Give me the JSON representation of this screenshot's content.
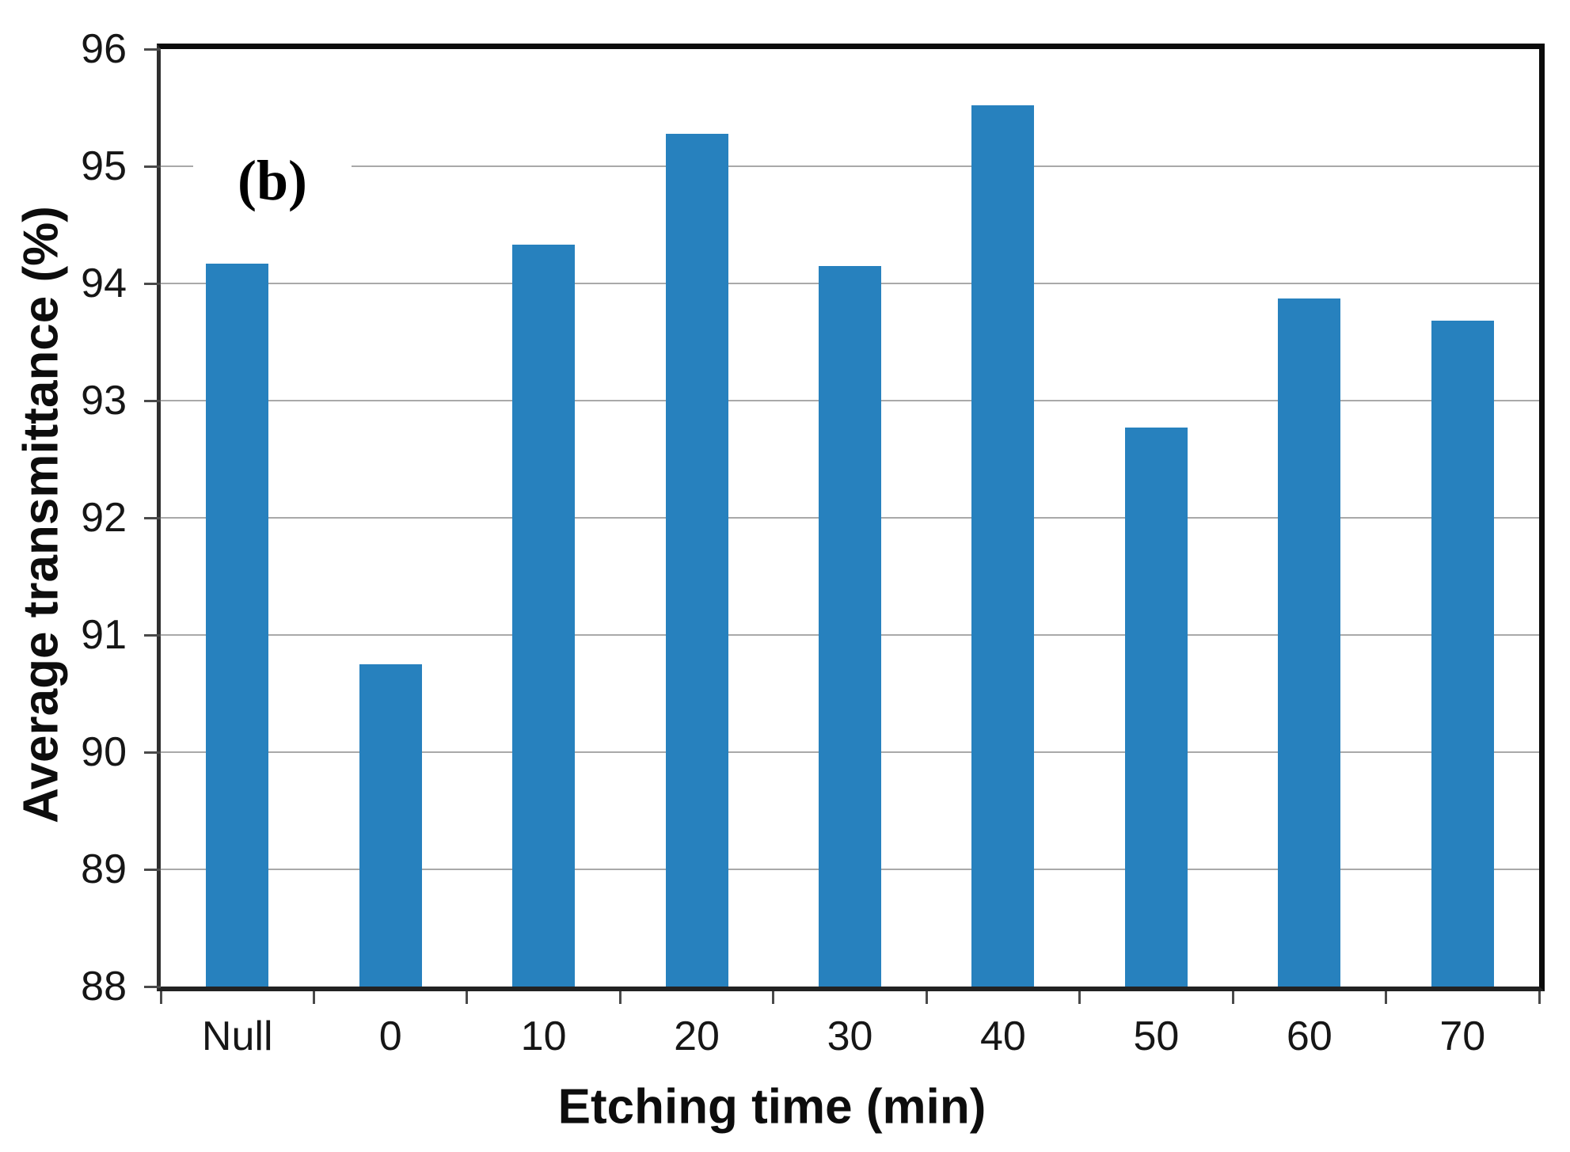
{
  "figure_label": "(b)",
  "chart_data": {
    "type": "bar",
    "categories": [
      "Null",
      "0",
      "10",
      "20",
      "30",
      "40",
      "50",
      "60",
      "70"
    ],
    "values": [
      94.17,
      90.75,
      94.33,
      95.28,
      94.15,
      95.52,
      92.77,
      93.87,
      93.68
    ],
    "title": "",
    "xlabel": "Etching time (min)",
    "ylabel": "Average transmittance (%)",
    "ylim": [
      88,
      96
    ],
    "yticks": [
      88,
      89,
      90,
      91,
      92,
      93,
      94,
      95,
      96
    ],
    "grid": true,
    "legend_position": "none",
    "bar_color": "#2781BE",
    "gridline_color": "#A9A9A9"
  }
}
